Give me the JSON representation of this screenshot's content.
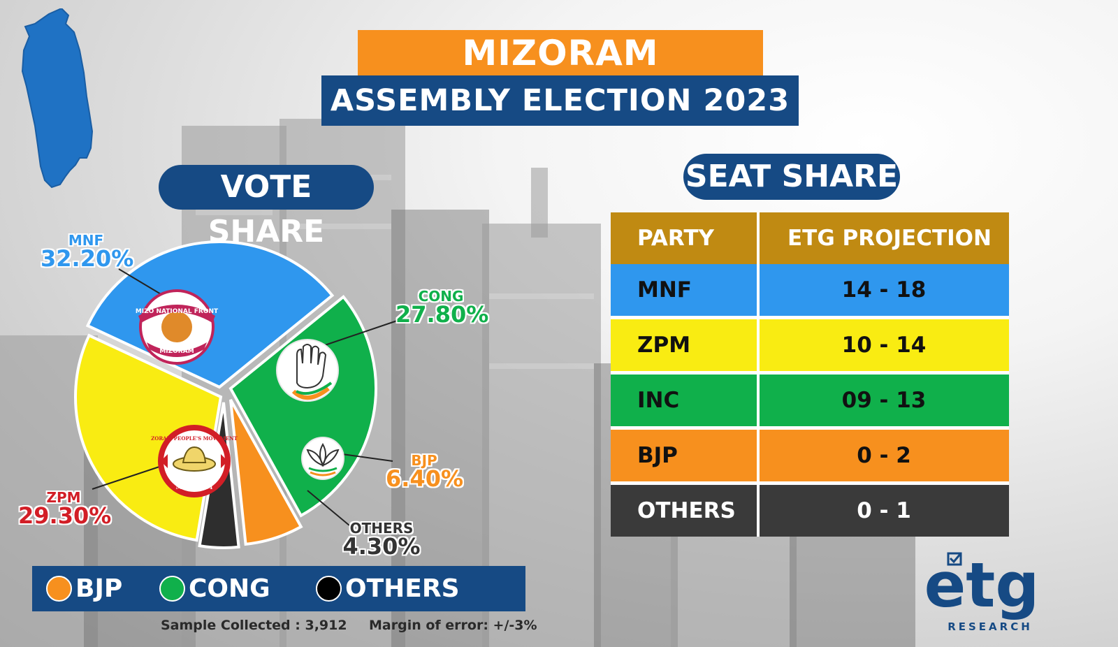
{
  "header": {
    "title": "MIZORAM",
    "subtitle": "ASSEMBLY ELECTION 2023"
  },
  "vote_share": {
    "heading": "VOTE SHARE"
  },
  "seat_share": {
    "heading": "SEAT SHARE",
    "columns": [
      "PARTY",
      "ETG PROJECTION"
    ],
    "rows": [
      {
        "party": "MNF",
        "projection": "14 - 18",
        "color": "#2f97ee",
        "text_color": "#111111"
      },
      {
        "party": "ZPM",
        "projection": "10 - 14",
        "color": "#f9ec12",
        "text_color": "#111111"
      },
      {
        "party": "INC",
        "projection": "09 - 13",
        "color": "#10b04b",
        "text_color": "#111111"
      },
      {
        "party": "BJP",
        "projection": "0 - 2",
        "color": "#f7901e",
        "text_color": "#111111"
      },
      {
        "party": "OTHERS",
        "projection": "0 - 1",
        "color": "#3a3a3a",
        "text_color": "#ffffff"
      }
    ]
  },
  "chart_data": {
    "type": "pie",
    "slices": [
      {
        "name": "MNF",
        "value": 32.2,
        "label": "32.20%",
        "color": "#2f97ee",
        "label_color": "#2f97ee",
        "logo": "mizo-national-front"
      },
      {
        "name": "CONG",
        "value": 27.8,
        "label": "27.80%",
        "color": "#10b04b",
        "label_color": "#10b04b",
        "logo": "congress-hand"
      },
      {
        "name": "BJP",
        "value": 6.4,
        "label": "6.40%",
        "color": "#f7901e",
        "label_color": "#f7901e",
        "logo": "bjp-lotus"
      },
      {
        "name": "OTHERS",
        "value": 4.3,
        "label": "4.30%",
        "color": "#2e2e2e",
        "label_color": "#333333",
        "logo": ""
      },
      {
        "name": "ZPM",
        "value": 29.3,
        "label": "29.30%",
        "color": "#f9ec12",
        "label_color": "#d21e26",
        "logo": "zoram-peoples-movement"
      }
    ]
  },
  "legend": {
    "items": [
      {
        "label": "BJP",
        "color": "#f7901e"
      },
      {
        "label": "CONG",
        "color": "#10b04b"
      },
      {
        "label": "OTHERS",
        "color": "#000000"
      }
    ]
  },
  "footer": {
    "sample": "Sample Collected : 3,912",
    "margin": "Margin of error: +/-3%"
  },
  "logo": {
    "wordmark": "etg",
    "tagline": "RESEARCH",
    "color": "#164a84"
  },
  "logo_texts": {
    "mnf_top": "MIZO NATIONAL FRONT",
    "mnf_bottom": "MIZORAM",
    "zpm_top": "ZORAM PEOPLE'S MOVEMENT",
    "zpm_bottom": "MIZORAM"
  }
}
